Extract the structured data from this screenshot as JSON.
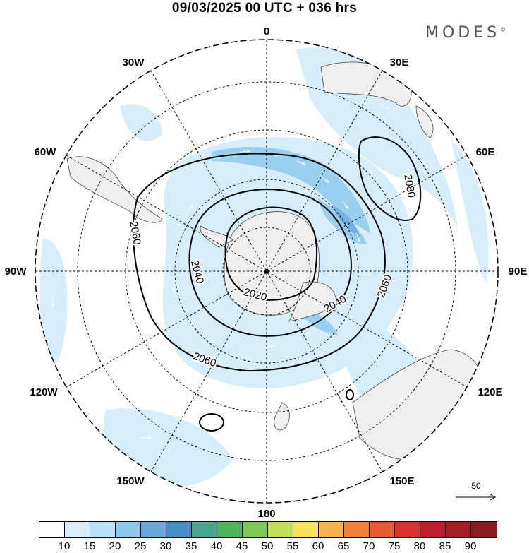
{
  "header": {
    "title": "09/03/2025  00 UTC  + 036 hrs",
    "logo": "MODES",
    "logo_mark": "©"
  },
  "map": {
    "projection": "south-polar-stereographic",
    "longitude_labels": {
      "top": "0",
      "upper_right_30": "30E",
      "right_60": "60E",
      "right_90": "90E",
      "right_120": "120E",
      "lower_right_150": "150E",
      "bottom": "180",
      "lower_left_150": "150W",
      "left_120": "120W",
      "left_90": "90W",
      "left_60": "60W",
      "upper_left_30": "30W"
    },
    "contour_labels": [
      "2080",
      "2060",
      "2040",
      "2020",
      "2040",
      "2060",
      "2060"
    ],
    "wind_reference": "50",
    "colors": {
      "land": "#efefef",
      "ocean": "#ffffff",
      "contour": "#000000"
    }
  },
  "colorbar": {
    "ticks": [
      "10",
      "15",
      "20",
      "25",
      "30",
      "35",
      "40",
      "45",
      "50",
      "55",
      "60",
      "65",
      "70",
      "75",
      "80",
      "85",
      "90"
    ],
    "colors": [
      "#ffffff",
      "#d6eefb",
      "#b8e2f8",
      "#8fc9ec",
      "#6aa8db",
      "#4a8ec9",
      "#4aa691",
      "#4cb55a",
      "#7fc857",
      "#c6df5b",
      "#fae15c",
      "#f7b24b",
      "#f07f3a",
      "#e75a34",
      "#d9322e",
      "#c11f2b",
      "#a41c24",
      "#8a1b1f"
    ]
  }
}
